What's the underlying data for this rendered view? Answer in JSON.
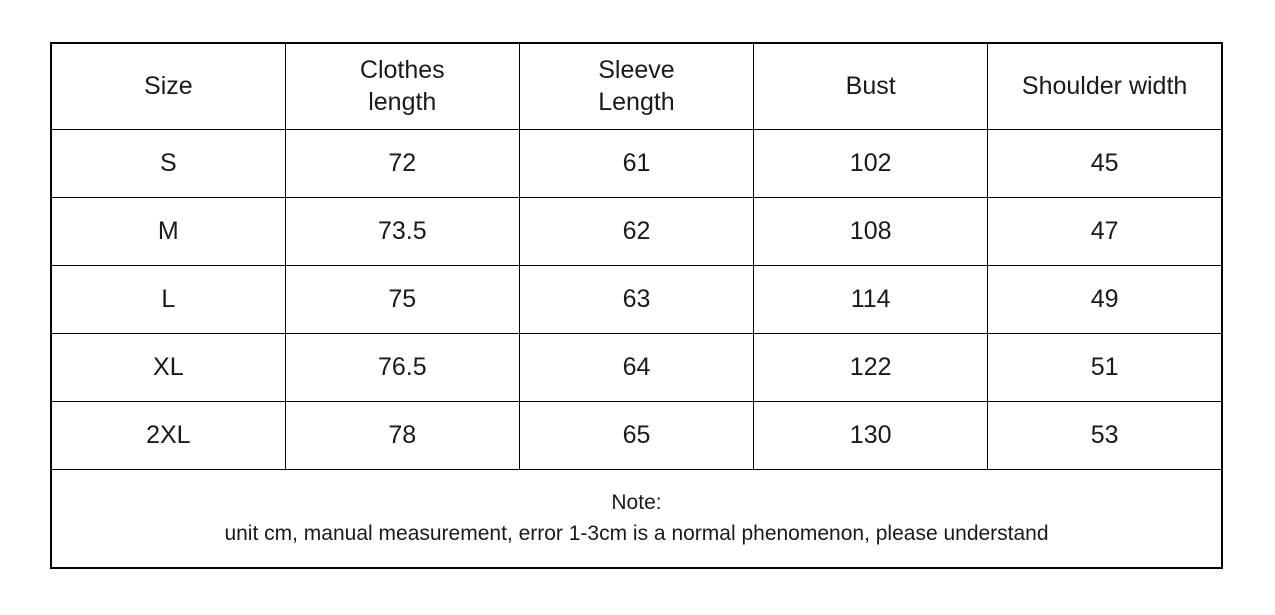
{
  "page": {
    "background": "#ffffff",
    "text_color": "#1a1a1a",
    "border_color": "#000000"
  },
  "table": {
    "columns": [
      "Size",
      "Clothes\nlength",
      "Sleeve\nLength",
      "Bust",
      "Shoulder width"
    ],
    "rows": [
      {
        "size": "S",
        "values": [
          "72",
          "61",
          "102",
          "45"
        ]
      },
      {
        "size": "M",
        "values": [
          "73.5",
          "62",
          "108",
          "47"
        ]
      },
      {
        "size": "L",
        "values": [
          "75",
          "63",
          "114",
          "49"
        ]
      },
      {
        "size": "XL",
        "values": [
          "76.5",
          "64",
          "122",
          "51"
        ]
      },
      {
        "size": "2XL",
        "values": [
          "78",
          "65",
          "130",
          "53"
        ]
      }
    ],
    "note": {
      "title": "Note:",
      "text": "unit cm, manual measurement, error 1-3cm is a normal phenomenon, please understand"
    }
  },
  "chart_data": {
    "type": "table",
    "title": "Garment size chart",
    "columns": [
      "Size",
      "Clothes length",
      "Sleeve Length",
      "Bust",
      "Shoulder width"
    ],
    "rows": [
      [
        "S",
        72,
        61,
        102,
        45
      ],
      [
        "M",
        73.5,
        62,
        108,
        47
      ],
      [
        "L",
        75,
        63,
        114,
        49
      ],
      [
        "XL",
        76.5,
        64,
        122,
        51
      ],
      [
        "2XL",
        78,
        65,
        130,
        53
      ]
    ],
    "unit": "cm",
    "note": "Note: unit cm, manual measurement, error 1-3cm is a normal phenomenon, please understand"
  }
}
